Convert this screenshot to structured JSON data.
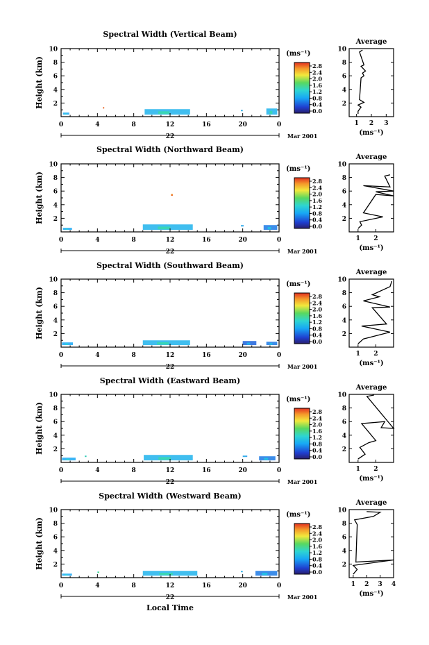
{
  "chart_data": [
    {
      "type": "heatmap",
      "title": "Spectral Width (Vertical Beam)",
      "ylabel": "Height (km)",
      "xlim": [
        0,
        24
      ],
      "ylim": [
        0,
        10
      ],
      "xticks": [
        "0",
        "4",
        "8",
        "12",
        "16",
        "20",
        "0"
      ],
      "yticks": [
        "2",
        "4",
        "6",
        "8",
        "10"
      ],
      "day_label": "22",
      "month_label": "Mar 2001",
      "colorbar_unit": "(ms⁻¹)",
      "colorbar_ticks": [
        "2.8",
        "2.4",
        "2.0",
        "1.6",
        "1.2",
        "0.8",
        "0.4",
        "0.0"
      ],
      "echo_regions": [
        {
          "x": [
            0.2,
            0.9
          ],
          "y": [
            0.3,
            0.6
          ],
          "level": 0.8
        },
        {
          "x": [
            9.2,
            14.2
          ],
          "y": [
            0.3,
            1.1
          ],
          "level": 0.9
        },
        {
          "x": [
            19.8,
            20.0
          ],
          "y": [
            0.9,
            1.0
          ],
          "level": 0.7
        },
        {
          "x": [
            22.6,
            23.8
          ],
          "y": [
            0.3,
            1.2
          ],
          "level": 0.9
        },
        {
          "x": [
            4.6,
            4.7
          ],
          "y": [
            1.3,
            1.4
          ],
          "level": 2.4
        }
      ],
      "average": {
        "title": "Average",
        "xlabel": "(ms⁻¹)",
        "xlim": [
          0.5,
          3.5
        ],
        "xticks": [
          "1",
          "2",
          "3"
        ],
        "profile": [
          [
            1.1,
            0.4
          ],
          [
            1.1,
            0.8
          ],
          [
            1.3,
            1.4
          ],
          [
            1.1,
            1.7
          ],
          [
            1.5,
            2.1
          ],
          [
            1.2,
            2.5
          ],
          [
            1.3,
            5.7
          ],
          [
            1.5,
            6.0
          ],
          [
            1.4,
            6.4
          ],
          [
            1.6,
            6.7
          ],
          [
            1.3,
            7.4
          ],
          [
            1.5,
            7.6
          ],
          [
            1.2,
            9.5
          ],
          [
            1.4,
            9.8
          ]
        ]
      }
    },
    {
      "type": "heatmap",
      "title": "Spectral Width (Northward Beam)",
      "ylabel": "Height (km)",
      "xlim": [
        0,
        24
      ],
      "ylim": [
        0,
        10
      ],
      "xticks": [
        "0",
        "4",
        "8",
        "12",
        "16",
        "20",
        "0"
      ],
      "yticks": [
        "2",
        "4",
        "6",
        "8",
        "10"
      ],
      "day_label": "22",
      "month_label": "Mar 2001",
      "colorbar_unit": "(ms⁻¹)",
      "colorbar_ticks": [
        "2.8",
        "2.4",
        "2.0",
        "1.6",
        "1.2",
        "0.8",
        "0.4",
        "0.0"
      ],
      "echo_regions": [
        {
          "x": [
            0.2,
            1.2
          ],
          "y": [
            0.3,
            0.6
          ],
          "level": 0.8
        },
        {
          "x": [
            9.0,
            14.5
          ],
          "y": [
            0.3,
            1.1
          ],
          "level": 0.9
        },
        {
          "x": [
            19.8,
            20.1
          ],
          "y": [
            0.9,
            1.0
          ],
          "level": 0.7
        },
        {
          "x": [
            22.3,
            23.8
          ],
          "y": [
            0.3,
            1.0
          ],
          "level": 0.6
        },
        {
          "x": [
            12.1,
            12.3
          ],
          "y": [
            5.3,
            5.6
          ],
          "level": 2.4
        }
      ],
      "average": {
        "title": "Average",
        "xlabel": "(ms⁻¹)",
        "xlim": [
          0.5,
          3.0
        ],
        "xticks": [
          "1",
          "2"
        ],
        "profile": [
          [
            1.0,
            0.5
          ],
          [
            1.2,
            1.0
          ],
          [
            1.1,
            1.5
          ],
          [
            2.4,
            2.2
          ],
          [
            1.3,
            2.8
          ],
          [
            2.0,
            5.5
          ],
          [
            3.0,
            5.3
          ],
          [
            2.0,
            5.9
          ],
          [
            3.0,
            6.0
          ],
          [
            1.3,
            6.8
          ],
          [
            2.8,
            6.6
          ],
          [
            2.5,
            8.2
          ],
          [
            2.8,
            8.4
          ]
        ]
      }
    },
    {
      "type": "heatmap",
      "title": "Spectral Width (Southward Beam)",
      "ylabel": "Height (km)",
      "xlim": [
        0,
        24
      ],
      "ylim": [
        0,
        10
      ],
      "xticks": [
        "0",
        "4",
        "8",
        "12",
        "16",
        "20",
        "0"
      ],
      "yticks": [
        "2",
        "4",
        "6",
        "8",
        "10"
      ],
      "day_label": "22",
      "month_label": "Mar 2001",
      "colorbar_unit": "(ms⁻¹)",
      "colorbar_ticks": [
        "2.8",
        "2.4",
        "2.0",
        "1.6",
        "1.2",
        "0.8",
        "0.4",
        "0.0"
      ],
      "echo_regions": [
        {
          "x": [
            0.1,
            1.3
          ],
          "y": [
            0.3,
            0.7
          ],
          "level": 0.8
        },
        {
          "x": [
            9.0,
            14.2
          ],
          "y": [
            0.3,
            1.0
          ],
          "level": 0.9
        },
        {
          "x": [
            20.0,
            21.5
          ],
          "y": [
            0.3,
            0.9
          ],
          "level": 0.5
        },
        {
          "x": [
            22.6,
            23.8
          ],
          "y": [
            0.3,
            0.8
          ],
          "level": 0.6
        }
      ],
      "average": {
        "title": "Average",
        "xlabel": "(ms⁻¹)",
        "xlim": [
          0.5,
          3.0
        ],
        "xticks": [
          "1",
          "2"
        ],
        "profile": [
          [
            1.0,
            0.5
          ],
          [
            1.3,
            1.2
          ],
          [
            2.8,
            2.2
          ],
          [
            1.2,
            3.1
          ],
          [
            2.6,
            3.4
          ],
          [
            1.8,
            5.8
          ],
          [
            2.8,
            5.9
          ],
          [
            1.3,
            6.8
          ],
          [
            2.2,
            7.4
          ],
          [
            1.8,
            7.7
          ],
          [
            2.8,
            8.9
          ],
          [
            2.9,
            9.7
          ]
        ]
      }
    },
    {
      "type": "heatmap",
      "title": "Spectral Width (Eastward Beam)",
      "ylabel": "Height (km)",
      "xlim": [
        0,
        24
      ],
      "ylim": [
        0,
        10
      ],
      "xticks": [
        "0",
        "4",
        "8",
        "12",
        "16",
        "20",
        "0"
      ],
      "yticks": [
        "2",
        "4",
        "6",
        "8",
        "10"
      ],
      "day_label": "22",
      "month_label": "Mar 2001",
      "colorbar_unit": "(ms⁻¹)",
      "colorbar_ticks": [
        "2.8",
        "2.4",
        "2.0",
        "1.6",
        "1.2",
        "0.8",
        "0.4",
        "0.0"
      ],
      "echo_regions": [
        {
          "x": [
            0.1,
            1.6
          ],
          "y": [
            0.3,
            0.7
          ],
          "level": 0.8
        },
        {
          "x": [
            9.1,
            14.5
          ],
          "y": [
            0.3,
            1.1
          ],
          "level": 0.9
        },
        {
          "x": [
            20.0,
            20.5
          ],
          "y": [
            0.9,
            1.0
          ],
          "level": 0.7
        },
        {
          "x": [
            21.8,
            23.6
          ],
          "y": [
            0.3,
            0.9
          ],
          "level": 0.6
        },
        {
          "x": [
            2.6,
            2.8
          ],
          "y": [
            0.9,
            1.0
          ],
          "level": 1.0
        }
      ],
      "average": {
        "title": "Average",
        "xlabel": "(ms⁻¹)",
        "xlim": [
          0.5,
          3.0
        ],
        "xticks": [
          "1",
          "2"
        ],
        "profile": [
          [
            1.0,
            0.5
          ],
          [
            1.4,
            1.2
          ],
          [
            1.1,
            2.2
          ],
          [
            1.6,
            2.9
          ],
          [
            2.0,
            3.2
          ],
          [
            1.2,
            5.7
          ],
          [
            2.5,
            6.0
          ],
          [
            2.3,
            5.1
          ],
          [
            3.0,
            5.0
          ],
          [
            1.5,
            9.7
          ],
          [
            1.9,
            9.9
          ]
        ]
      }
    },
    {
      "type": "heatmap",
      "title": "Spectral Width (Westward Beam)",
      "ylabel": "Height (km)",
      "xlim": [
        0,
        24
      ],
      "ylim": [
        0,
        10
      ],
      "xticks": [
        "0",
        "4",
        "8",
        "12",
        "16",
        "20",
        "0"
      ],
      "yticks": [
        "2",
        "4",
        "6",
        "8",
        "10"
      ],
      "day_label": "22",
      "month_label": "Mar 2001",
      "colorbar_unit": "(ms⁻¹)",
      "colorbar_ticks": [
        "2.8",
        "2.4",
        "2.0",
        "1.6",
        "1.2",
        "0.8",
        "0.4",
        "0.0"
      ],
      "echo_regions": [
        {
          "x": [
            0.1,
            1.2
          ],
          "y": [
            0.3,
            0.6
          ],
          "level": 0.8
        },
        {
          "x": [
            9.0,
            15.0
          ],
          "y": [
            0.3,
            1.0
          ],
          "level": 0.9
        },
        {
          "x": [
            19.8,
            20.0
          ],
          "y": [
            0.9,
            1.0
          ],
          "level": 0.7
        },
        {
          "x": [
            21.4,
            23.8
          ],
          "y": [
            0.3,
            1.0
          ],
          "level": 0.6
        },
        {
          "x": [
            4.0,
            4.2
          ],
          "y": [
            0.8,
            0.9
          ],
          "level": 1.2
        }
      ],
      "average": {
        "title": "Average",
        "xlabel": "(ms⁻¹)",
        "xlim": [
          0.7,
          4.0
        ],
        "xticks": [
          "1",
          "2",
          "3",
          "4"
        ],
        "profile": [
          [
            1.0,
            0.5
          ],
          [
            1.3,
            1.2
          ],
          [
            1.0,
            1.8
          ],
          [
            4.0,
            2.6
          ],
          [
            1.2,
            2.3
          ],
          [
            1.3,
            7.8
          ],
          [
            1.1,
            8.5
          ],
          [
            2.5,
            9.0
          ],
          [
            3.0,
            9.6
          ],
          [
            2.0,
            9.7
          ]
        ]
      }
    }
  ],
  "xlabel": "Local Time"
}
